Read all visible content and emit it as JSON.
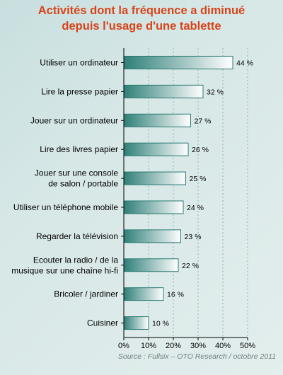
{
  "chart_data": {
    "type": "bar",
    "orientation": "horizontal",
    "title": [
      "Activités dont la fréquence a diminué",
      "depuis l'usage d'une tablette"
    ],
    "categories": [
      [
        "Utiliser un ordinateur"
      ],
      [
        "Lire la presse papier"
      ],
      [
        "Jouer sur un ordinateur"
      ],
      [
        "Lire des livres papier"
      ],
      [
        "Jouer sur une console",
        "de salon / portable"
      ],
      [
        "Utiliser un téléphone mobile"
      ],
      [
        "Regarder la télévision"
      ],
      [
        "Ecouter la radio / de la",
        "musique sur une chaîne hi-fi"
      ],
      [
        "Bricoler / jardiner"
      ],
      [
        "Cuisiner"
      ]
    ],
    "values": [
      44,
      32,
      27,
      26,
      25,
      24,
      23,
      22,
      16,
      10
    ],
    "value_labels": [
      "44 %",
      "32 %",
      "27 %",
      "26 %",
      "25 %",
      "24 %",
      "23 %",
      "22 %",
      "16 %",
      "10 %"
    ],
    "xlim": [
      0,
      50
    ],
    "xticks": [
      0,
      10,
      20,
      30,
      40,
      50
    ],
    "xtick_labels": [
      "0%",
      "10%",
      "20%",
      "30%",
      "40%",
      "50%"
    ],
    "grid": "vertical-dotted",
    "source": "Source : Fullsix – OTO Research / octobre 2011",
    "colors": {
      "title": "#d8441a",
      "bar_dark": "#2f7f78",
      "bar_light": "#ffffff",
      "bar_border": "#2a7a74",
      "axis": "#000000",
      "grid": "#8fb3b1"
    }
  }
}
